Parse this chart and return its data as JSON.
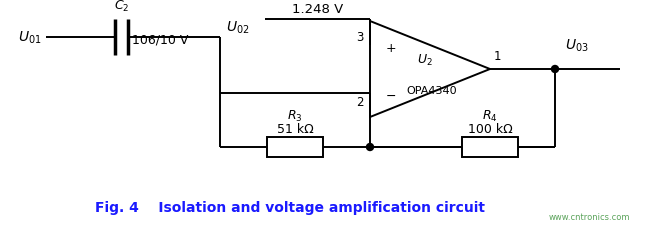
{
  "bg_color": "#ffffff",
  "fig_caption": "Fig. 4    Isolation and voltage amplification circuit",
  "watermark": "www.cntronics.com",
  "labels": {
    "U01": "$U_{01}$",
    "C2": "$C_2$",
    "C2_val": "106/10 V",
    "U02": "$U_{02}$",
    "V_ref": "1.248 V",
    "pin3": "3",
    "pin2": "2",
    "pin1": "1",
    "U2": "$U_2$",
    "opamp_name": "OPA4340",
    "plus": "+",
    "minus": "−",
    "R3": "$R_3$",
    "R3_val": "51 kΩ",
    "R4": "$R_4$",
    "R4_val": "100 kΩ",
    "U03": "$U_{03}$"
  },
  "colors": {
    "line": "#000000",
    "text": "#000000",
    "caption_color": "#1a1aff",
    "watermark": "#4a9a4a"
  }
}
